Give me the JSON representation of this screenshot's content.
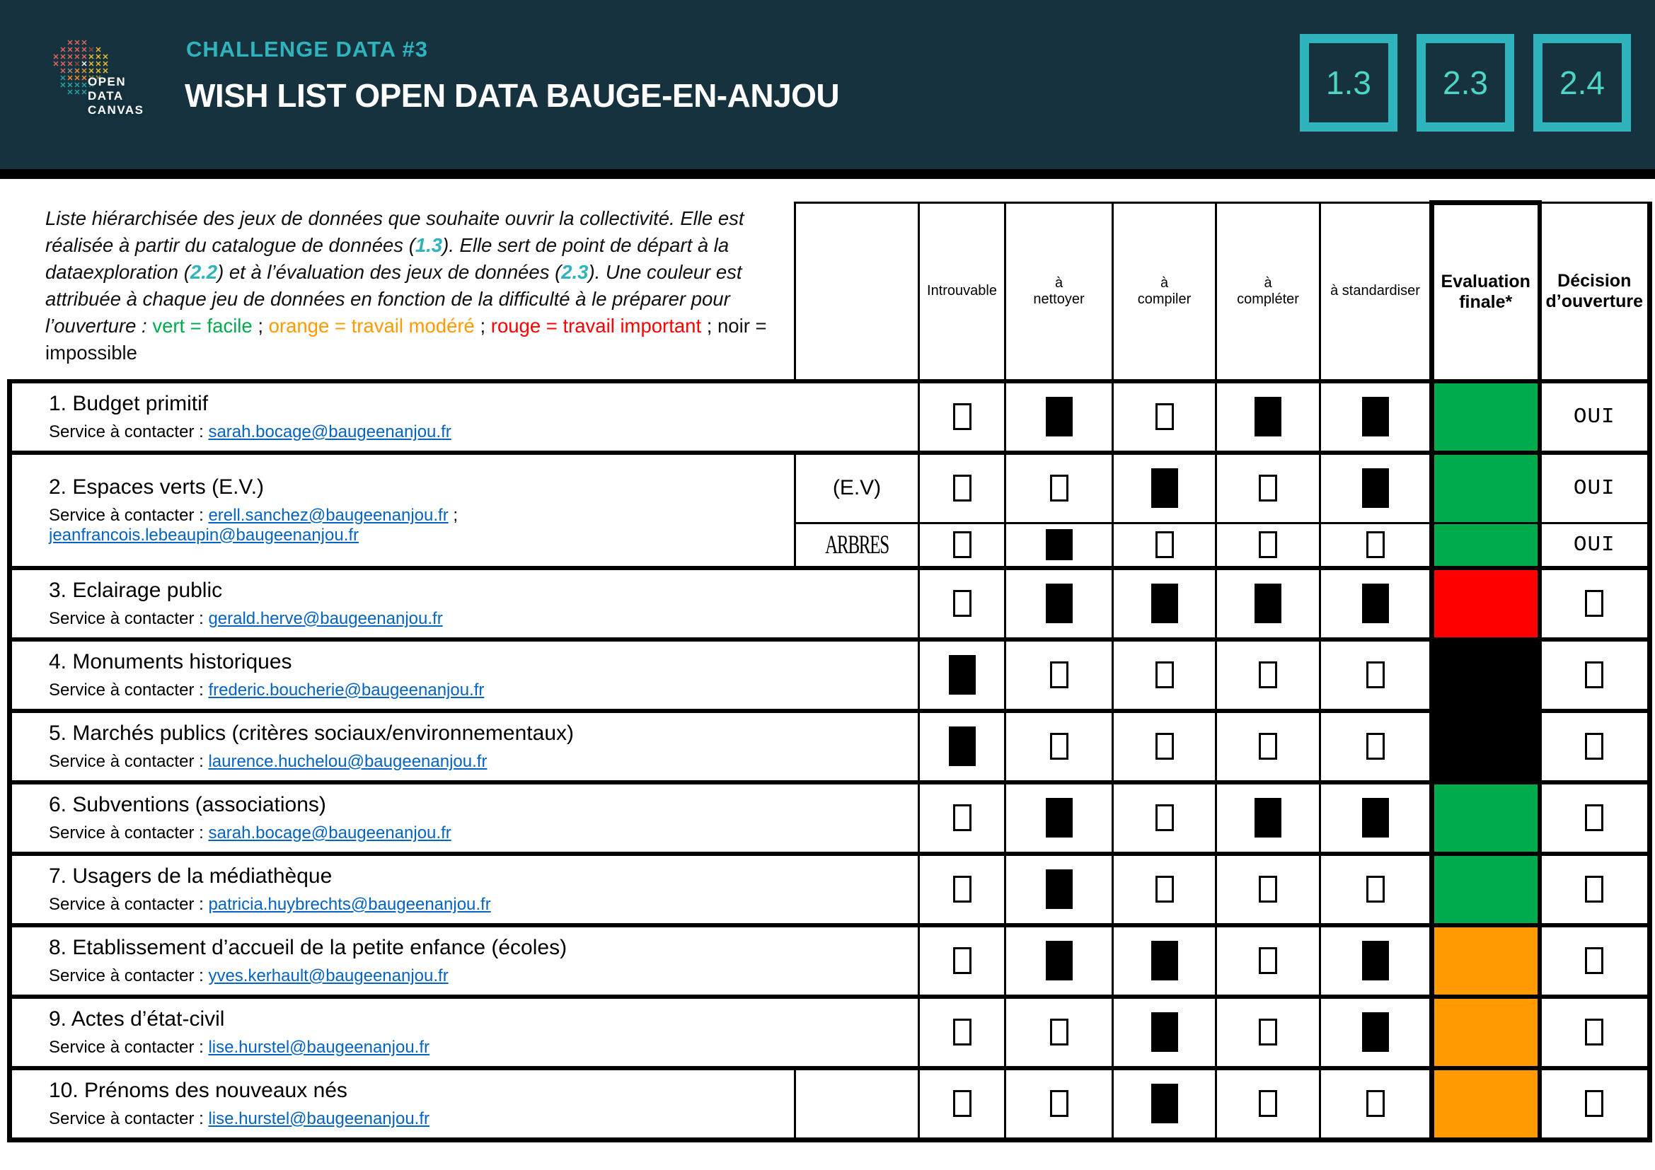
{
  "header": {
    "kicker": "CHALLENGE DATA #3",
    "title": "WISH LIST OPEN DATA BAUGE-EN-ANJOU",
    "ref_boxes": [
      "1.3",
      "2.3",
      "2.4"
    ],
    "logo": {
      "lines": [
        "OPEN",
        "DATA",
        "CANVAS"
      ],
      "pattern": [
        "..rrr...",
        ".rrrrby.",
        "rrrrryyy",
        "rrrbwyyy",
        ".rgooyyy",
        ".toooyy.",
        ".ttttt..",
        "..ttt..."
      ],
      "palette": {
        "r": "#E2635B",
        "b": "#8A4A40",
        "y": "#EBBA2B",
        "o": "#EE8D2E",
        "t": "#27A39F",
        "w": "#FFFFFF",
        "g": "#948A7F"
      }
    }
  },
  "palette": {
    "green": "#00AB4E",
    "orange": "#FF9A00",
    "red": "#FF0000",
    "black": "#000000",
    "teal": "#2FB3BD",
    "link": "#0563C1"
  },
  "intro": {
    "segments": [
      {
        "style": "i",
        "text": "Liste hiérarchisée des jeux de données que souhaite ouvrir la collectivité. Elle est réalisée à partir du catalogue de données ("
      },
      {
        "style": "ref",
        "text": "1.3"
      },
      {
        "style": "i",
        "text": "). Elle sert de point de départ à la dataexploration ("
      },
      {
        "style": "ref",
        "text": "2.2"
      },
      {
        "style": "i",
        "text": ") et à l’évaluation des jeux de données ("
      },
      {
        "style": "ref",
        "text": "2.3"
      },
      {
        "style": "i",
        "text": "). Une couleur est attribuée à chaque jeu de données en fonction de la difficulté à le préparer pour l’ouverture : "
      },
      {
        "style": "green",
        "text": "vert = facile"
      },
      {
        "style": "plain",
        "text": " ; "
      },
      {
        "style": "orange",
        "text": "orange = travail modéré"
      },
      {
        "style": "plain",
        "text": " ; "
      },
      {
        "style": "red",
        "text": "rouge = travail important"
      },
      {
        "style": "plain",
        "text": " ; noir = impossible"
      }
    ]
  },
  "table": {
    "contact_prefix": "Service à contacter : ",
    "headers": {
      "introuvable": "Introuvable",
      "nettoyer": "à\nnettoyer",
      "compiler": "à\ncompiler",
      "completer": "à\ncompléter",
      "standardiser": "à standardiser",
      "evaluation": "Evaluation\nfinale*",
      "decision": "Décision\nd’ouverture"
    },
    "criteria_keys": [
      "introuvable",
      "nettoyer",
      "compiler",
      "completer",
      "standardiser"
    ],
    "rows": [
      {
        "title": "1. Budget primitif",
        "emails": [
          "sarah.bocage@baugeenanjou.fr"
        ],
        "has_sub_col": false,
        "lines": [
          {
            "checks": [
              0,
              1,
              0,
              1,
              1
            ],
            "eval": "green",
            "decision": {
              "type": "text",
              "value": "OUI"
            }
          }
        ]
      },
      {
        "title": "2. Espaces verts (E.V.)",
        "emails": [
          "erell.sanchez@baugeenanjou.fr",
          "jeanfrancois.lebeaupin@baugeenanjou.fr"
        ],
        "has_sub_col": true,
        "lines": [
          {
            "sub": {
              "text": "(E.V)",
              "style": "sans"
            },
            "checks": [
              0,
              0,
              1,
              0,
              1
            ],
            "eval": "green",
            "decision": {
              "type": "text",
              "value": "OUI"
            }
          },
          {
            "sub": {
              "text": "ARBRES",
              "style": "serif"
            },
            "checks": [
              0,
              1,
              0,
              0,
              0
            ],
            "eval": "green",
            "decision": {
              "type": "text",
              "value": "OUI"
            }
          }
        ]
      },
      {
        "title": "3. Eclairage public",
        "emails": [
          "gerald.herve@baugeenanjou.fr"
        ],
        "has_sub_col": false,
        "lines": [
          {
            "checks": [
              0,
              1,
              1,
              1,
              1
            ],
            "eval": "red",
            "decision": {
              "type": "checkbox"
            }
          }
        ]
      },
      {
        "title": "4. Monuments historiques",
        "emails": [
          "frederic.boucherie@baugeenanjou.fr"
        ],
        "has_sub_col": false,
        "lines": [
          {
            "checks": [
              1,
              0,
              0,
              0,
              0
            ],
            "eval": "black",
            "decision": {
              "type": "checkbox"
            }
          }
        ]
      },
      {
        "title": "5. Marchés publics (critères sociaux/environnementaux)",
        "emails": [
          "laurence.huchelou@baugeenanjou.fr"
        ],
        "has_sub_col": false,
        "lines": [
          {
            "checks": [
              1,
              0,
              0,
              0,
              0
            ],
            "eval": "black",
            "decision": {
              "type": "checkbox"
            }
          }
        ]
      },
      {
        "title": "6. Subventions (associations)",
        "emails": [
          "sarah.bocage@baugeenanjou.fr"
        ],
        "has_sub_col": false,
        "lines": [
          {
            "checks": [
              0,
              1,
              0,
              1,
              1
            ],
            "eval": "green",
            "decision": {
              "type": "checkbox"
            }
          }
        ]
      },
      {
        "title": "7. Usagers de la médiathèque",
        "emails": [
          "patricia.huybrechts@baugeenanjou.fr"
        ],
        "has_sub_col": false,
        "lines": [
          {
            "checks": [
              0,
              1,
              0,
              0,
              0
            ],
            "eval": "green",
            "decision": {
              "type": "checkbox"
            }
          }
        ]
      },
      {
        "title": "8. Etablissement d’accueil de la petite enfance (écoles)",
        "emails": [
          "yves.kerhault@baugeenanjou.fr"
        ],
        "has_sub_col": false,
        "lines": [
          {
            "checks": [
              0,
              1,
              1,
              0,
              1
            ],
            "eval": "orange",
            "decision": {
              "type": "checkbox"
            }
          }
        ]
      },
      {
        "title": "9. Actes d’état-civil",
        "emails": [
          "lise.hurstel@baugeenanjou.fr"
        ],
        "has_sub_col": false,
        "lines": [
          {
            "checks": [
              0,
              0,
              1,
              0,
              1
            ],
            "eval": "orange",
            "decision": {
              "type": "checkbox"
            }
          }
        ]
      },
      {
        "title": "10. Prénoms des nouveaux nés",
        "emails": [
          "lise.hurstel@baugeenanjou.fr"
        ],
        "has_sub_col": true,
        "lines": [
          {
            "sub": {
              "text": "",
              "style": "sans"
            },
            "checks": [
              0,
              0,
              1,
              0,
              0
            ],
            "eval": "orange",
            "decision": {
              "type": "checkbox"
            }
          }
        ]
      }
    ]
  }
}
